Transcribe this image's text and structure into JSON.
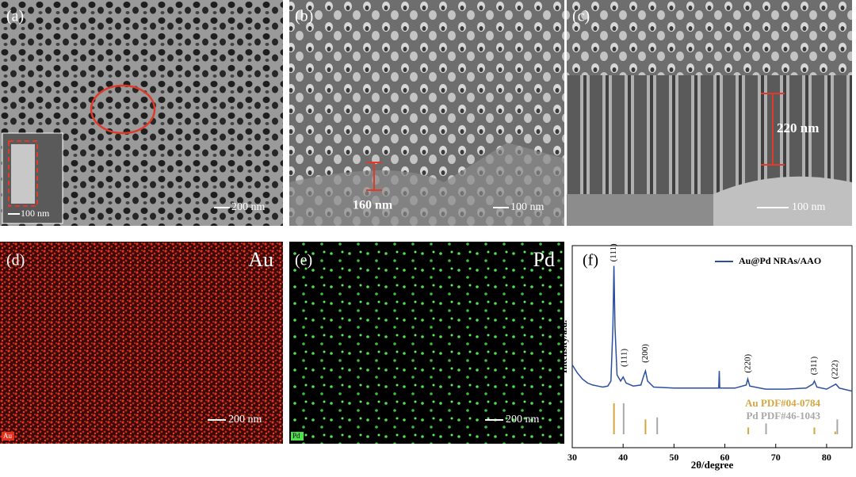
{
  "panels": [
    {
      "label": "(a)",
      "scale_bar": "200 nm",
      "inset_scale_bar": "100 nm"
    },
    {
      "label": "(b)",
      "scale_bar": "100 nm",
      "measure": "160 nm"
    },
    {
      "label": "(c)",
      "scale_bar": "100 nm",
      "measure": "220 nm"
    },
    {
      "label": "(d)",
      "element": "Au",
      "tag": "Au",
      "scale_bar": "200 nm"
    },
    {
      "label": "(e)",
      "element": "Pd",
      "tag": "Pd",
      "scale_bar": "200 nm"
    },
    {
      "label": "(f)"
    }
  ],
  "chart_data": {
    "type": "line",
    "x_label": "2θ/degree",
    "y_label": "Intensity/a.u.",
    "xlim": [
      30,
      85
    ],
    "xticks": [
      30,
      40,
      50,
      60,
      70,
      80
    ],
    "ylim": [
      0,
      100
    ],
    "series": [
      {
        "name": "Au@Pd NRAs/AAO",
        "color": "#2b4fa0",
        "x": [
          30,
          31,
          32,
          33,
          34,
          35,
          36,
          37,
          37.6,
          38.0,
          38.2,
          38.4,
          38.8,
          39.5,
          40,
          40.6,
          42,
          43.5,
          44.1,
          44.4,
          44.8,
          46,
          50,
          55,
          58.8,
          58.9,
          59.0,
          62,
          64.2,
          64.5,
          64.9,
          68,
          72,
          76,
          77.3,
          77.6,
          78.1,
          80,
          81.5,
          81.8,
          82.5,
          85
        ],
        "values": [
          41,
          37,
          34,
          32,
          31,
          30.5,
          30,
          30.5,
          33,
          60,
          90,
          60,
          36,
          33,
          35,
          32,
          30.5,
          31,
          36,
          38,
          33,
          30,
          29.5,
          29.5,
          29.5,
          38,
          29.5,
          29.5,
          31,
          34,
          30.5,
          29,
          29,
          29.5,
          31.5,
          33,
          30,
          29,
          31,
          31.5,
          29.5,
          28
        ]
      }
    ],
    "references": [
      {
        "name": "Au PDF#04-0784",
        "color": "#d4a640",
        "x": [
          38.2,
          44.4,
          64.6,
          77.6,
          81.7
        ],
        "values": [
          22,
          14,
          10,
          10,
          8
        ]
      },
      {
        "name": "Pd PDF#46-1043",
        "color": "#a8a8a8",
        "x": [
          40.1,
          46.7,
          68.1,
          82.1
        ],
        "values": [
          22,
          15,
          12,
          14
        ]
      }
    ],
    "annotations": [
      {
        "text": "(111)",
        "x": 38.2,
        "y": 92
      },
      {
        "text": "(111)",
        "x": 40.3,
        "y": 40
      },
      {
        "text": "(200)",
        "x": 44.4,
        "y": 42
      },
      {
        "text": "(220)",
        "x": 64.6,
        "y": 37
      },
      {
        "text": "(311)",
        "x": 77.6,
        "y": 36
      },
      {
        "text": "(222)",
        "x": 81.7,
        "y": 34
      }
    ],
    "legend": "upper right"
  }
}
